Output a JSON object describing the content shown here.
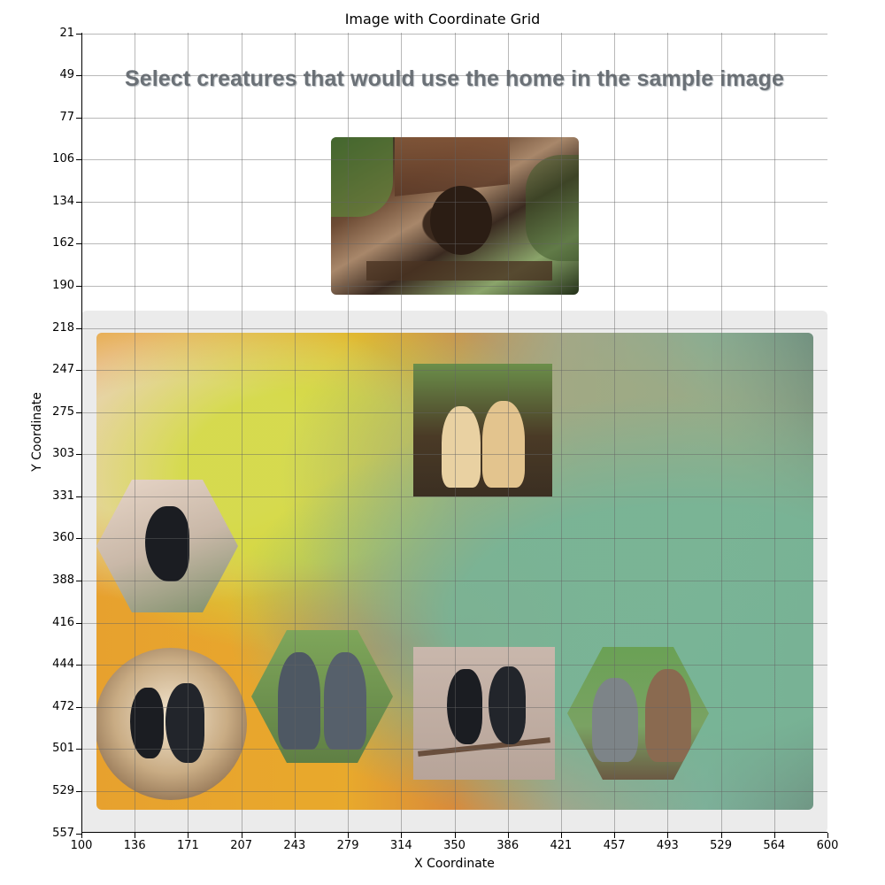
{
  "figure": {
    "title": "Image with Coordinate Grid",
    "x_axis_label": "X Coordinate",
    "y_axis_label": "Y Coordinate",
    "x_ticks": [
      "100",
      "136",
      "171",
      "207",
      "243",
      "279",
      "314",
      "350",
      "386",
      "421",
      "457",
      "493",
      "529",
      "564",
      "600"
    ],
    "y_ticks": [
      "21",
      "49",
      "77",
      "106",
      "134",
      "162",
      "190",
      "218",
      "247",
      "275",
      "303",
      "331",
      "360",
      "388",
      "416",
      "444",
      "472",
      "501",
      "529",
      "557"
    ]
  },
  "captcha": {
    "instruction": "Select creatures that would use the home in the sample image",
    "sample_image": {
      "icon": "birdhouse-image"
    },
    "options": [
      {
        "name": "option-puppies",
        "icon": "two-puppies-image"
      },
      {
        "name": "option-crow-single",
        "icon": "crow-image"
      },
      {
        "name": "option-crows-circle",
        "icon": "two-crows-image"
      },
      {
        "name": "option-pitbulls",
        "icon": "two-gray-dogs-image"
      },
      {
        "name": "option-crows-branch",
        "icon": "two-crows-on-branch-image"
      },
      {
        "name": "option-cats",
        "icon": "two-cats-image"
      }
    ]
  },
  "colors": {
    "panel_bg": "#ebebeb",
    "title_text": "#6b7177",
    "grid": "#999999"
  }
}
